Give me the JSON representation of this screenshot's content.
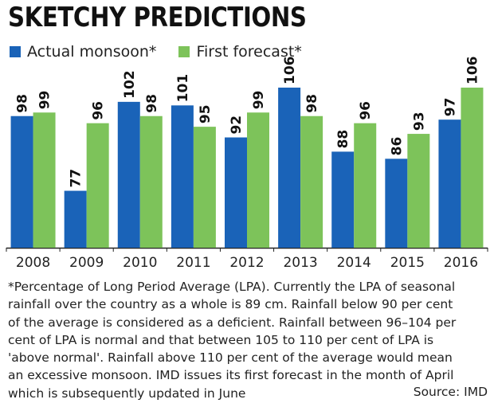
{
  "title": "SKETCHY PREDICTIONS",
  "legend": [
    {
      "label": "Actual monsoon*",
      "color": "#1a63b8"
    },
    {
      "label": "First forecast*",
      "color": "#7dc35a"
    }
  ],
  "chart_data": {
    "type": "bar",
    "title": "SKETCHY PREDICTIONS",
    "categories": [
      "2008",
      "2009",
      "2010",
      "2011",
      "2012",
      "2013",
      "2014",
      "2015",
      "2016"
    ],
    "series": [
      {
        "name": "Actual monsoon*",
        "color": "#1a63b8",
        "values": [
          98,
          77,
          102,
          101,
          92,
          106,
          88,
          86,
          97
        ]
      },
      {
        "name": "First forecast*",
        "color": "#7dc35a",
        "values": [
          99,
          96,
          98,
          95,
          99,
          98,
          96,
          93,
          106
        ]
      }
    ],
    "ylim": [
      61,
      106
    ],
    "xlabel": "",
    "ylabel": ""
  },
  "footnote": "*Percentage of Long Period Average (LPA). Currently the LPA of seasonal\nrainfall over the country as a whole is 89 cm. Rainfall below 90 per cent\nof the average is considered as a deficient. Rainfall between 96–104 per\ncent of LPA is normal and that between 105 to 110 per cent of LPA is\n'above normal'. Rainfall above 110 per cent of the average would mean\nan excessive monsoon. IMD issues its first forecast in the month of April\nwhich is subsequently updated in June",
  "source": "Source: IMD"
}
